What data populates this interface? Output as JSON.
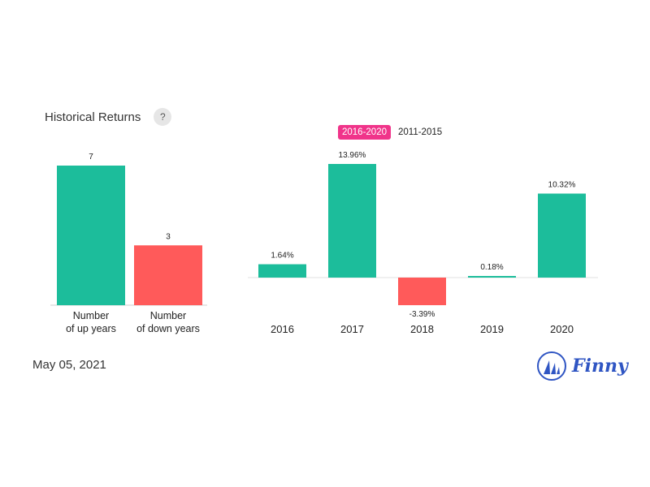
{
  "header": {
    "title": "Historical Returns",
    "help_label": "?"
  },
  "tabs": [
    {
      "label": "2016-2020",
      "active": true
    },
    {
      "label": "2011-2015",
      "active": false
    }
  ],
  "footer": {
    "date": "May 05, 2021",
    "brand": "Finny"
  },
  "colors": {
    "up": "#1cbd9b",
    "down": "#ff5a5a",
    "active_tab": "#f0348a",
    "brand": "#2f55c3"
  },
  "chart_data": [
    {
      "type": "bar",
      "categories": [
        [
          "Number",
          "of up years"
        ],
        [
          "Number",
          "of down years"
        ]
      ],
      "values": [
        7,
        3
      ],
      "value_labels": [
        "7",
        "3"
      ],
      "ylim": [
        0,
        7
      ]
    },
    {
      "type": "bar",
      "categories": [
        "2016",
        "2017",
        "2018",
        "2019",
        "2020"
      ],
      "values": [
        1.64,
        13.96,
        -3.39,
        0.18,
        10.32
      ],
      "value_labels": [
        "1.64%",
        "13.96%",
        "-3.39%",
        "0.18%",
        "10.32%"
      ],
      "unit": "%"
    }
  ]
}
